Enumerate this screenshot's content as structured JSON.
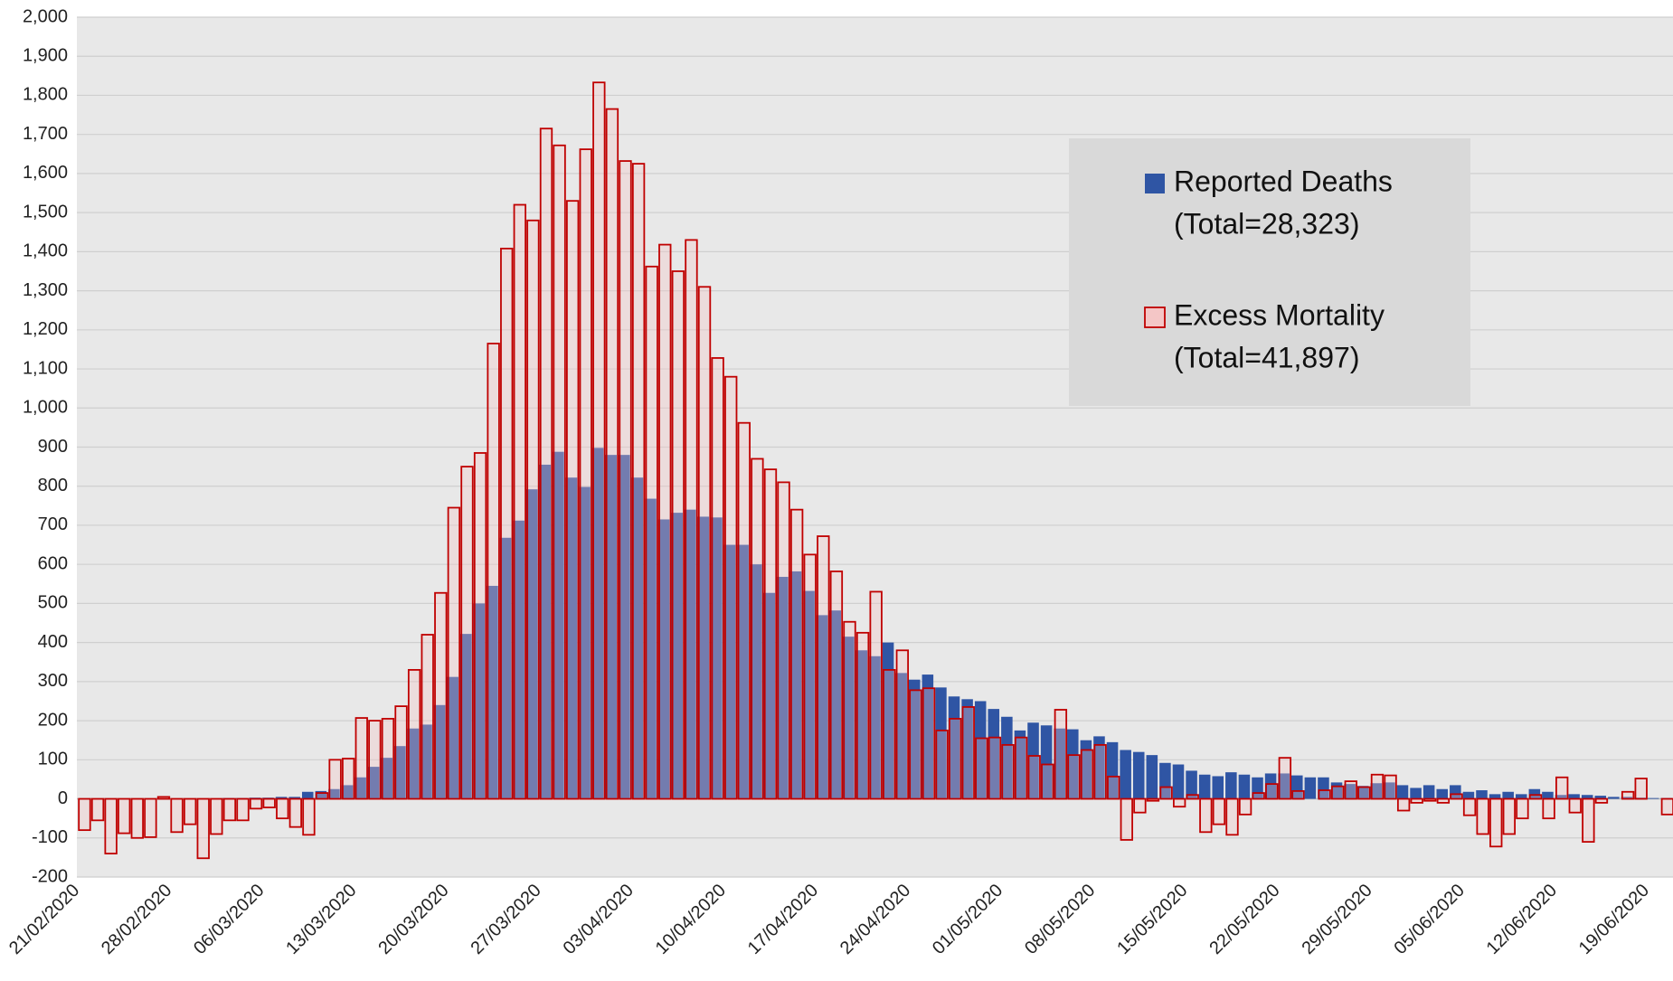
{
  "chart_data": {
    "type": "bar",
    "categories": [
      "21/02/2020",
      null,
      null,
      null,
      null,
      null,
      null,
      "28/02/2020",
      null,
      null,
      null,
      null,
      null,
      null,
      "06/03/2020",
      null,
      null,
      null,
      null,
      null,
      null,
      "13/03/2020",
      null,
      null,
      null,
      null,
      null,
      null,
      "20/03/2020",
      null,
      null,
      null,
      null,
      null,
      null,
      "27/03/2020",
      null,
      null,
      null,
      null,
      null,
      null,
      "03/04/2020",
      null,
      null,
      null,
      null,
      null,
      null,
      "10/04/2020",
      null,
      null,
      null,
      null,
      null,
      null,
      "17/04/2020",
      null,
      null,
      null,
      null,
      null,
      null,
      "24/04/2020",
      null,
      null,
      null,
      null,
      null,
      null,
      "01/05/2020",
      null,
      null,
      null,
      null,
      null,
      null,
      "08/05/2020",
      null,
      null,
      null,
      null,
      null,
      null,
      "15/05/2020",
      null,
      null,
      null,
      null,
      null,
      null,
      "22/05/2020",
      null,
      null,
      null,
      null,
      null,
      null,
      "29/05/2020",
      null,
      null,
      null,
      null,
      null,
      null,
      "05/06/2020",
      null,
      null,
      null,
      null,
      null,
      null,
      "12/06/2020",
      null,
      null,
      null,
      null,
      null,
      null,
      "19/06/2020",
      null
    ],
    "series": [
      {
        "name": "Reported Deaths",
        "legend_note": "(Total=28,323)",
        "color": "#2f55a4",
        "values": [
          0,
          0,
          0,
          0,
          0,
          0,
          0,
          0,
          0,
          0,
          0,
          2,
          2,
          3,
          3,
          5,
          5,
          18,
          20,
          25,
          35,
          55,
          82,
          105,
          135,
          180,
          190,
          240,
          312,
          422,
          500,
          545,
          668,
          712,
          792,
          855,
          888,
          822,
          798,
          898,
          880,
          880,
          822,
          768,
          715,
          732,
          740,
          722,
          720,
          650,
          650,
          600,
          527,
          568,
          582,
          532,
          470,
          482,
          415,
          380,
          365,
          400,
          322,
          305,
          318,
          285,
          262,
          255,
          250,
          230,
          210,
          175,
          195,
          188,
          180,
          178,
          150,
          160,
          145,
          125,
          120,
          112,
          92,
          88,
          72,
          62,
          58,
          68,
          62,
          55,
          65,
          65,
          60,
          55,
          55,
          42,
          38,
          33,
          40,
          42,
          35,
          28,
          35,
          25,
          35,
          18,
          22,
          12,
          18,
          12,
          25,
          18,
          10,
          12,
          10,
          8,
          5,
          5,
          3,
          2,
          2
        ]
      },
      {
        "name": "Excess Mortality",
        "legend_note": "(Total=41,897)",
        "color": "#c00000",
        "fill": "#f4c6c6",
        "values": [
          -80,
          -55,
          -140,
          -88,
          -100,
          -98,
          5,
          -85,
          -65,
          -152,
          -90,
          -55,
          -55,
          -25,
          -22,
          -50,
          -72,
          -92,
          15,
          100,
          103,
          207,
          200,
          205,
          237,
          330,
          420,
          527,
          745,
          850,
          885,
          1165,
          1408,
          1520,
          1480,
          1715,
          1672,
          1530,
          1662,
          1833,
          1765,
          1632,
          1625,
          1362,
          1418,
          1350,
          1430,
          1310,
          1128,
          1080,
          962,
          870,
          843,
          810,
          740,
          625,
          672,
          582,
          453,
          425,
          530,
          330,
          380,
          278,
          283,
          175,
          205,
          235,
          155,
          157,
          138,
          157,
          110,
          88,
          228,
          112,
          125,
          138,
          57,
          -105,
          -35,
          -5,
          30,
          -20,
          10,
          -85,
          -65,
          -92,
          -40,
          15,
          38,
          105,
          20,
          0,
          22,
          32,
          45,
          30,
          62,
          60,
          -30,
          -10,
          -5,
          -10,
          12,
          -42,
          -90,
          -122,
          -90,
          -50,
          10,
          -50,
          55,
          -35,
          -110,
          -10,
          0,
          18,
          52,
          0,
          -40
        ]
      }
    ],
    "ylim": [
      -200,
      2000
    ],
    "yticks": [
      -200,
      -100,
      0,
      100,
      200,
      300,
      400,
      500,
      600,
      700,
      800,
      900,
      {
        "value": 1000,
        "label": "1,000"
      },
      {
        "value": 1100,
        "label": "1,100"
      },
      {
        "value": 1200,
        "label": "1,200"
      },
      {
        "value": 1300,
        "label": "1,300"
      },
      {
        "value": 1400,
        "label": "1,400"
      },
      {
        "value": 1500,
        "label": "1,500"
      },
      {
        "value": 1600,
        "label": "1,600"
      },
      {
        "value": 1700,
        "label": "1,700"
      },
      {
        "value": 1800,
        "label": "1,800"
      },
      {
        "value": 1900,
        "label": "1,900"
      },
      {
        "value": 2000,
        "label": "2,000"
      }
    ],
    "grid": true
  }
}
